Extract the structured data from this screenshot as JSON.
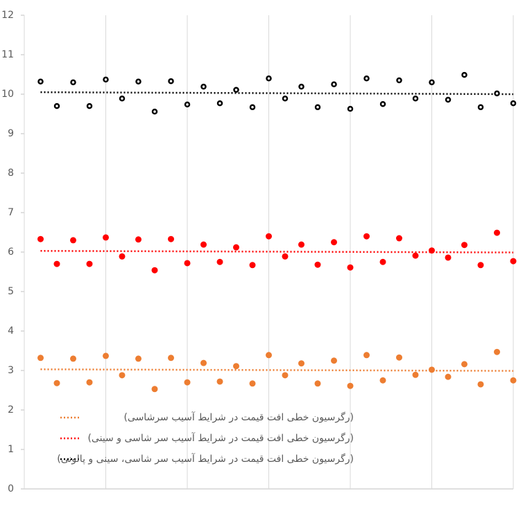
{
  "chart_data": {
    "type": "scatter",
    "x": [
      1,
      2,
      3,
      4,
      5,
      6,
      7,
      8,
      9,
      10,
      11,
      12,
      13,
      14,
      15,
      16,
      17,
      18,
      19,
      20,
      21,
      22,
      23,
      24,
      25,
      26,
      27,
      28,
      29,
      30
    ],
    "xlim": [
      0,
      30
    ],
    "xticks": [
      0,
      5,
      10,
      15,
      20,
      25,
      30
    ],
    "ylim": [
      0,
      12
    ],
    "yticks": [
      0,
      1,
      2,
      3,
      4,
      5,
      6,
      7,
      8,
      9,
      10,
      11,
      12
    ],
    "grid": true,
    "legend": "bottom-left",
    "series": [
      {
        "color": "#ed7d31",
        "values": [
          3.32,
          2.68,
          3.3,
          2.7,
          3.37,
          2.88,
          3.3,
          2.53,
          3.32,
          2.7,
          3.19,
          2.72,
          3.11,
          2.67,
          3.39,
          2.88,
          3.18,
          2.67,
          3.25,
          2.61,
          3.39,
          2.75,
          3.33,
          2.89,
          3.02,
          2.84,
          3.16,
          2.65,
          3.47,
          2.75
        ],
        "trendline": {
          "name": "(رگرسیون خطی افت قیمت در شرایط آسیب سرشاسی)",
          "x": [
            1,
            30
          ],
          "values": [
            3.03,
            2.99
          ]
        }
      },
      {
        "color": "#ff0000",
        "values": [
          6.33,
          5.7,
          6.3,
          5.7,
          6.37,
          5.89,
          6.32,
          5.54,
          6.33,
          5.72,
          6.19,
          5.75,
          6.12,
          5.67,
          6.4,
          5.89,
          6.19,
          5.68,
          6.25,
          5.61,
          6.4,
          5.75,
          6.35,
          5.91,
          6.04,
          5.86,
          6.18,
          5.67,
          6.49,
          5.77
        ],
        "trendline": {
          "name": "(رگرسیون خطی افت قیمت در شرایط آسیب سر شاسی و سینی)",
          "x": [
            1,
            30
          ],
          "values": [
            6.03,
            5.99
          ]
        }
      },
      {
        "color": "#000000",
        "values": [
          10.32,
          9.7,
          10.3,
          9.7,
          10.37,
          9.89,
          10.32,
          9.56,
          10.33,
          9.74,
          10.19,
          9.77,
          10.11,
          9.67,
          10.4,
          9.89,
          10.19,
          9.67,
          10.25,
          9.63,
          10.4,
          9.75,
          10.35,
          9.89,
          10.3,
          9.86,
          10.49,
          9.67,
          10.02,
          9.77
        ],
        "trendline": {
          "name": "(رگرسیون خطی افت قیمت در شرایط آسیب سر شاسی، سینی و پالونی)",
          "x": [
            1,
            30
          ],
          "values": [
            10.05,
            10.0
          ]
        }
      }
    ]
  }
}
